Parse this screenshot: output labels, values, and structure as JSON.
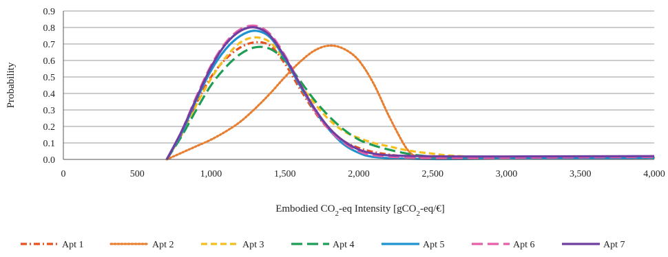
{
  "chart_data": {
    "type": "line",
    "ylabel": "Probability",
    "xlabel": {
      "parts": [
        {
          "text": "Embodied CO",
          "sub": false
        },
        {
          "text": "2",
          "sub": true
        },
        {
          "text": "-eq Intensity [gCO",
          "sub": false
        },
        {
          "text": "2",
          "sub": true
        },
        {
          "text": "-eq/€]",
          "sub": false
        }
      ]
    },
    "xlim": [
      0,
      4000
    ],
    "ylim": [
      0,
      0.9
    ],
    "x_ticks": [
      {
        "value": 0,
        "label": "0"
      },
      {
        "value": 500,
        "label": "500"
      },
      {
        "value": 1000,
        "label": "1,000"
      },
      {
        "value": 1500,
        "label": "1,500"
      },
      {
        "value": 2000,
        "label": "2,000"
      },
      {
        "value": 2500,
        "label": "2,500"
      },
      {
        "value": 3000,
        "label": "3,000"
      },
      {
        "value": 3500,
        "label": "3,500"
      },
      {
        "value": 4000,
        "label": "4,000"
      }
    ],
    "y_ticks": [
      {
        "value": 0.0,
        "label": "0.0"
      },
      {
        "value": 0.1,
        "label": "0.1"
      },
      {
        "value": 0.2,
        "label": "0.2"
      },
      {
        "value": 0.3,
        "label": "0.3"
      },
      {
        "value": 0.4,
        "label": "0.4"
      },
      {
        "value": 0.5,
        "label": "0.5"
      },
      {
        "value": 0.6,
        "label": "0.6"
      },
      {
        "value": 0.7,
        "label": "0.7"
      },
      {
        "value": 0.8,
        "label": "0.8"
      },
      {
        "value": 0.9,
        "label": "0.9"
      }
    ],
    "grid": "horizontal",
    "legend_position": "bottom",
    "series": [
      {
        "name": "Apt 1",
        "color": "#E8501E",
        "dash": "dash-dot",
        "points": [
          [
            700,
            0
          ],
          [
            800,
            0.15
          ],
          [
            900,
            0.34
          ],
          [
            1000,
            0.5
          ],
          [
            1100,
            0.61
          ],
          [
            1200,
            0.68
          ],
          [
            1300,
            0.71
          ],
          [
            1400,
            0.69
          ],
          [
            1500,
            0.58
          ],
          [
            1600,
            0.43
          ],
          [
            1700,
            0.29
          ],
          [
            1800,
            0.18
          ],
          [
            1900,
            0.11
          ],
          [
            2000,
            0.07
          ],
          [
            2100,
            0.045
          ],
          [
            2200,
            0.03
          ],
          [
            2300,
            0.02
          ],
          [
            2500,
            0.01
          ],
          [
            3000,
            0.008
          ],
          [
            4000,
            0.01
          ]
        ]
      },
      {
        "name": "Apt 2",
        "color": "#E87E30",
        "dash": "dotted",
        "points": [
          [
            700,
            0
          ],
          [
            800,
            0.04
          ],
          [
            900,
            0.08
          ],
          [
            1000,
            0.12
          ],
          [
            1100,
            0.17
          ],
          [
            1200,
            0.23
          ],
          [
            1300,
            0.31
          ],
          [
            1400,
            0.4
          ],
          [
            1500,
            0.5
          ],
          [
            1600,
            0.59
          ],
          [
            1700,
            0.66
          ],
          [
            1800,
            0.69
          ],
          [
            1900,
            0.67
          ],
          [
            2000,
            0.6
          ],
          [
            2100,
            0.46
          ],
          [
            2200,
            0.27
          ],
          [
            2300,
            0.1
          ],
          [
            2350,
            0.04
          ],
          [
            2400,
            0.02
          ],
          [
            2600,
            0.01
          ],
          [
            3000,
            0.01
          ],
          [
            4000,
            0.01
          ]
        ]
      },
      {
        "name": "Apt 3",
        "color": "#F5BE20",
        "dash": "dashed",
        "points": [
          [
            700,
            0
          ],
          [
            800,
            0.15
          ],
          [
            900,
            0.33
          ],
          [
            1000,
            0.49
          ],
          [
            1100,
            0.62
          ],
          [
            1200,
            0.71
          ],
          [
            1300,
            0.74
          ],
          [
            1400,
            0.71
          ],
          [
            1500,
            0.6
          ],
          [
            1600,
            0.46
          ],
          [
            1700,
            0.34
          ],
          [
            1800,
            0.24
          ],
          [
            1900,
            0.17
          ],
          [
            2000,
            0.13
          ],
          [
            2100,
            0.1
          ],
          [
            2200,
            0.08
          ],
          [
            2300,
            0.06
          ],
          [
            2400,
            0.045
          ],
          [
            2500,
            0.035
          ],
          [
            2600,
            0.025
          ],
          [
            2800,
            0.015
          ],
          [
            3000,
            0.01
          ],
          [
            4000,
            0.01
          ]
        ]
      },
      {
        "name": "Apt 4",
        "color": "#1E9D56",
        "dash": "long-dashed",
        "points": [
          [
            700,
            0
          ],
          [
            800,
            0.14
          ],
          [
            900,
            0.3
          ],
          [
            1000,
            0.45
          ],
          [
            1100,
            0.56
          ],
          [
            1200,
            0.64
          ],
          [
            1300,
            0.68
          ],
          [
            1400,
            0.67
          ],
          [
            1500,
            0.6
          ],
          [
            1600,
            0.48
          ],
          [
            1700,
            0.36
          ],
          [
            1800,
            0.26
          ],
          [
            1900,
            0.18
          ],
          [
            2000,
            0.12
          ],
          [
            2100,
            0.085
          ],
          [
            2200,
            0.06
          ],
          [
            2300,
            0.04
          ],
          [
            2400,
            0.025
          ],
          [
            2600,
            0.012
          ],
          [
            3000,
            0.008
          ],
          [
            4000,
            0.01
          ]
        ]
      },
      {
        "name": "Apt 5",
        "color": "#1E92D0",
        "dash": "solid",
        "points": [
          [
            700,
            0
          ],
          [
            800,
            0.16
          ],
          [
            900,
            0.36
          ],
          [
            1000,
            0.54
          ],
          [
            1100,
            0.67
          ],
          [
            1200,
            0.75
          ],
          [
            1300,
            0.78
          ],
          [
            1400,
            0.74
          ],
          [
            1500,
            0.61
          ],
          [
            1600,
            0.45
          ],
          [
            1700,
            0.3
          ],
          [
            1800,
            0.18
          ],
          [
            1900,
            0.09
          ],
          [
            2000,
            0.04
          ],
          [
            2100,
            0.015
          ],
          [
            2300,
            0.005
          ],
          [
            2600,
            0.002
          ],
          [
            3000,
            0.005
          ],
          [
            4000,
            0.01
          ]
        ]
      },
      {
        "name": "Apt 6",
        "color": "#E65FA6",
        "dash": "long-dashed",
        "points": [
          [
            700,
            0
          ],
          [
            800,
            0.17
          ],
          [
            900,
            0.38
          ],
          [
            1000,
            0.57
          ],
          [
            1100,
            0.71
          ],
          [
            1200,
            0.79
          ],
          [
            1300,
            0.81
          ],
          [
            1400,
            0.76
          ],
          [
            1500,
            0.63
          ],
          [
            1600,
            0.46
          ],
          [
            1700,
            0.3
          ],
          [
            1800,
            0.18
          ],
          [
            1900,
            0.1
          ],
          [
            2000,
            0.05
          ],
          [
            2100,
            0.025
          ],
          [
            2300,
            0.012
          ],
          [
            2600,
            0.008
          ],
          [
            3000,
            0.01
          ],
          [
            4000,
            0.015
          ]
        ]
      },
      {
        "name": "Apt 7",
        "color": "#6E3FA0",
        "dash": "solid",
        "points": [
          [
            700,
            0
          ],
          [
            800,
            0.17
          ],
          [
            900,
            0.37
          ],
          [
            1000,
            0.56
          ],
          [
            1100,
            0.7
          ],
          [
            1200,
            0.78
          ],
          [
            1300,
            0.8
          ],
          [
            1400,
            0.75
          ],
          [
            1500,
            0.62
          ],
          [
            1600,
            0.46
          ],
          [
            1700,
            0.31
          ],
          [
            1800,
            0.19
          ],
          [
            1900,
            0.11
          ],
          [
            2000,
            0.06
          ],
          [
            2100,
            0.035
          ],
          [
            2200,
            0.025
          ],
          [
            2400,
            0.02
          ],
          [
            2700,
            0.018
          ],
          [
            3000,
            0.018
          ],
          [
            4000,
            0.02
          ]
        ]
      }
    ]
  }
}
